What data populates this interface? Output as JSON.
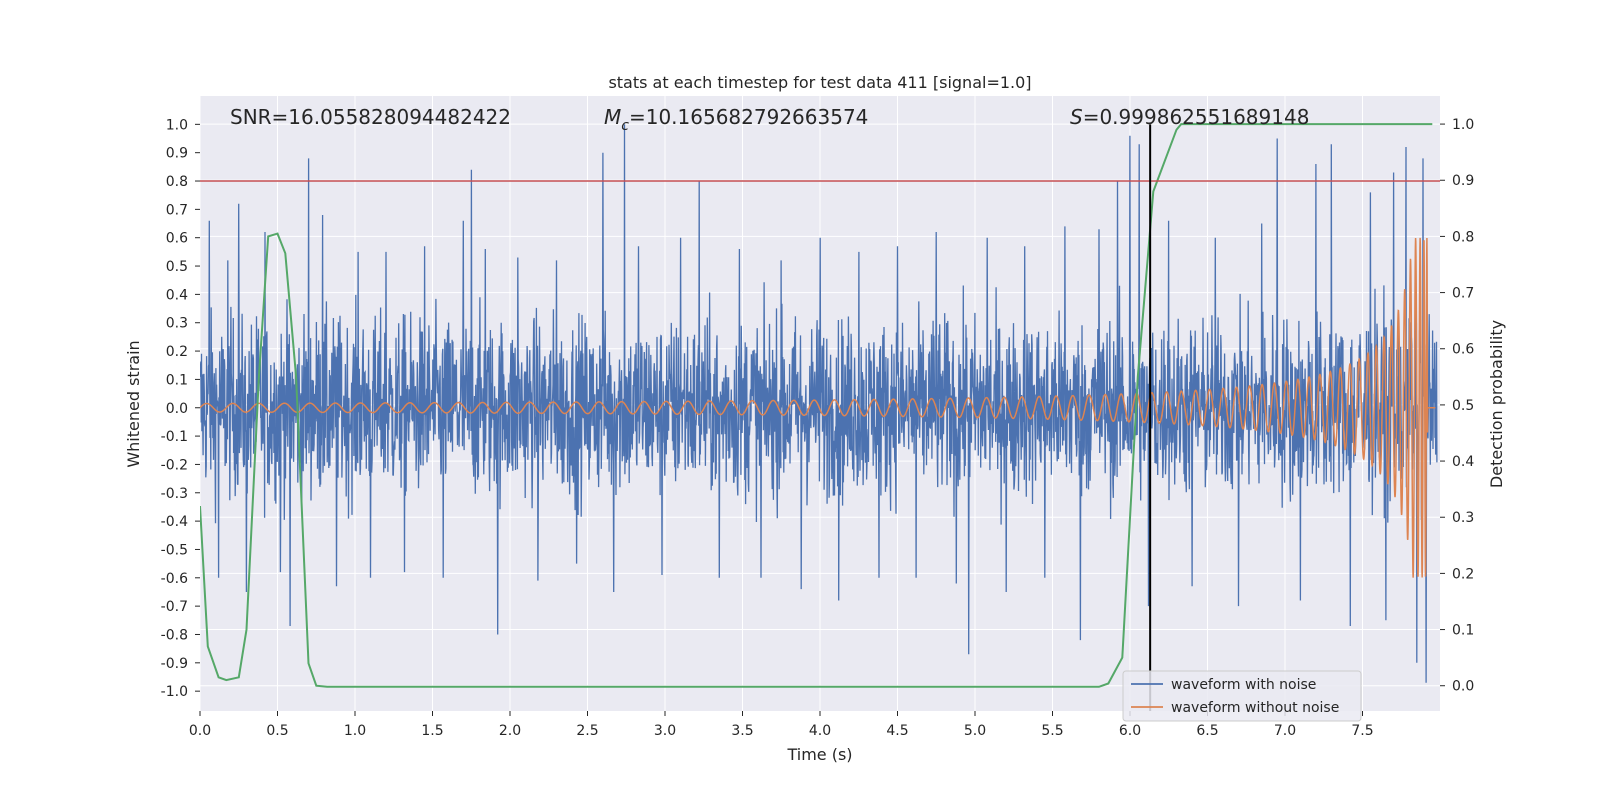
{
  "chart_data": {
    "type": "line",
    "title": "stats at each timestep for test data 411 [signal=1.0]",
    "xlabel": "Time (s)",
    "ylabel": "Whitened strain",
    "y2label": "Detection probability",
    "xlim": [
      0.0,
      8.0
    ],
    "ylim": [
      -1.07,
      1.1
    ],
    "y2lim": [
      -0.045,
      1.05
    ],
    "xticks": [
      "0.0",
      "0.5",
      "1.0",
      "1.5",
      "2.0",
      "2.5",
      "3.0",
      "3.5",
      "4.0",
      "4.5",
      "5.0",
      "5.5",
      "6.0",
      "6.5",
      "7.0",
      "7.5"
    ],
    "yticks": [
      "1.0",
      "0.9",
      "0.8",
      "0.7",
      "0.6",
      "0.5",
      "0.4",
      "0.3",
      "0.2",
      "0.1",
      "0.0",
      "-0.1",
      "-0.2",
      "-0.3",
      "-0.4",
      "-0.5",
      "-0.6",
      "-0.7",
      "-0.8",
      "-0.9",
      "-1.0"
    ],
    "y2ticks": [
      "1.0",
      "0.9",
      "0.8",
      "0.7",
      "0.6",
      "0.5",
      "0.4",
      "0.3",
      "0.2",
      "0.1",
      "0.0"
    ],
    "grid": true,
    "legend_position": "bottom-right",
    "annotations": {
      "snr": "SNR=16.055828094482422",
      "mc_prefix": "M",
      "mc_sub": "c",
      "mc_value": "=10.165682792663574",
      "s_prefix": "S",
      "s_value": "=0.999862551689148"
    },
    "threshold_line": {
      "y": 0.8,
      "color": "#c44e52"
    },
    "vertical_line": {
      "x": 6.13,
      "color": "#000000"
    },
    "series": [
      {
        "name": "waveform with noise",
        "color": "#4c72b0",
        "axis": "left",
        "noise_band": 0.28,
        "spikes": [
          {
            "x": 0.06,
            "y": 0.66
          },
          {
            "x": 0.12,
            "y": -0.6
          },
          {
            "x": 0.18,
            "y": 0.52
          },
          {
            "x": 0.25,
            "y": 0.72
          },
          {
            "x": 0.3,
            "y": -0.65
          },
          {
            "x": 0.42,
            "y": 0.62
          },
          {
            "x": 0.52,
            "y": -0.58
          },
          {
            "x": 0.58,
            "y": -0.77
          },
          {
            "x": 0.7,
            "y": 0.88
          },
          {
            "x": 0.79,
            "y": 0.68
          },
          {
            "x": 0.88,
            "y": -0.63
          },
          {
            "x": 1.02,
            "y": 0.55
          },
          {
            "x": 1.1,
            "y": -0.6
          },
          {
            "x": 1.2,
            "y": 0.55
          },
          {
            "x": 1.32,
            "y": -0.58
          },
          {
            "x": 1.45,
            "y": 0.57
          },
          {
            "x": 1.57,
            "y": -0.6
          },
          {
            "x": 1.7,
            "y": 0.66
          },
          {
            "x": 1.75,
            "y": 0.84
          },
          {
            "x": 1.84,
            "y": 0.56
          },
          {
            "x": 1.92,
            "y": -0.8
          },
          {
            "x": 2.05,
            "y": 0.53
          },
          {
            "x": 2.18,
            "y": -0.61
          },
          {
            "x": 2.3,
            "y": 0.52
          },
          {
            "x": 2.43,
            "y": -0.55
          },
          {
            "x": 2.6,
            "y": 0.9
          },
          {
            "x": 2.67,
            "y": -0.65
          },
          {
            "x": 2.74,
            "y": 1.0
          },
          {
            "x": 2.83,
            "y": 0.57
          },
          {
            "x": 2.98,
            "y": -0.59
          },
          {
            "x": 3.1,
            "y": 0.6
          },
          {
            "x": 3.22,
            "y": 0.8
          },
          {
            "x": 3.35,
            "y": -0.6
          },
          {
            "x": 3.48,
            "y": 0.56
          },
          {
            "x": 3.62,
            "y": -0.6
          },
          {
            "x": 3.75,
            "y": 0.52
          },
          {
            "x": 3.88,
            "y": -0.64
          },
          {
            "x": 4.0,
            "y": 0.6
          },
          {
            "x": 4.12,
            "y": -0.68
          },
          {
            "x": 4.25,
            "y": 0.55
          },
          {
            "x": 4.38,
            "y": -0.6
          },
          {
            "x": 4.5,
            "y": 0.57
          },
          {
            "x": 4.62,
            "y": -0.6
          },
          {
            "x": 4.75,
            "y": 0.62
          },
          {
            "x": 4.88,
            "y": -0.62
          },
          {
            "x": 4.96,
            "y": -0.87
          },
          {
            "x": 5.08,
            "y": 0.6
          },
          {
            "x": 5.2,
            "y": -0.65
          },
          {
            "x": 5.32,
            "y": 0.57
          },
          {
            "x": 5.45,
            "y": -0.6
          },
          {
            "x": 5.58,
            "y": 0.64
          },
          {
            "x": 5.68,
            "y": -0.82
          },
          {
            "x": 5.8,
            "y": 0.63
          },
          {
            "x": 5.92,
            "y": 0.8
          },
          {
            "x": 6.0,
            "y": 0.96
          },
          {
            "x": 6.06,
            "y": 0.93
          },
          {
            "x": 6.12,
            "y": -0.7
          },
          {
            "x": 6.25,
            "y": 0.66
          },
          {
            "x": 6.4,
            "y": -0.63
          },
          {
            "x": 6.55,
            "y": 0.6
          },
          {
            "x": 6.7,
            "y": -0.7
          },
          {
            "x": 6.85,
            "y": 0.65
          },
          {
            "x": 6.95,
            "y": 0.95
          },
          {
            "x": 7.1,
            "y": -0.68
          },
          {
            "x": 7.2,
            "y": 0.86
          },
          {
            "x": 7.3,
            "y": 0.93
          },
          {
            "x": 7.42,
            "y": -0.77
          },
          {
            "x": 7.55,
            "y": 0.76
          },
          {
            "x": 7.65,
            "y": -0.75
          },
          {
            "x": 7.7,
            "y": 0.83
          },
          {
            "x": 7.78,
            "y": 0.92
          },
          {
            "x": 7.85,
            "y": -0.9
          },
          {
            "x": 7.89,
            "y": 0.88
          },
          {
            "x": 7.91,
            "y": -0.97
          }
        ]
      },
      {
        "name": "waveform without noise",
        "color": "#dd8452",
        "axis": "left",
        "chirp": {
          "t_start": 0.0,
          "t_end": 7.92,
          "amp_start": 0.015,
          "amp_end": 0.6,
          "cycles_per_second_start": 10,
          "merger_time": 7.93
        }
      },
      {
        "name": "detection probability",
        "color": "#55a868",
        "axis": "right",
        "x": [
          0.0,
          0.05,
          0.12,
          0.17,
          0.25,
          0.3,
          0.38,
          0.44,
          0.5,
          0.55,
          0.62,
          0.7,
          0.75,
          0.82,
          1.0,
          2.0,
          3.0,
          4.0,
          5.0,
          5.8,
          5.86,
          5.95,
          6.05,
          6.15,
          6.3,
          6.33,
          6.5,
          7.0,
          7.5,
          7.95
        ],
        "y": [
          0.32,
          0.07,
          0.015,
          0.01,
          0.015,
          0.1,
          0.55,
          0.8,
          0.805,
          0.77,
          0.55,
          0.04,
          0.0,
          -0.002,
          -0.002,
          -0.002,
          -0.002,
          -0.002,
          -0.002,
          -0.002,
          0.004,
          0.05,
          0.55,
          0.88,
          0.99,
          1.0,
          1.0,
          1.0,
          1.0,
          1.0
        ]
      }
    ]
  }
}
